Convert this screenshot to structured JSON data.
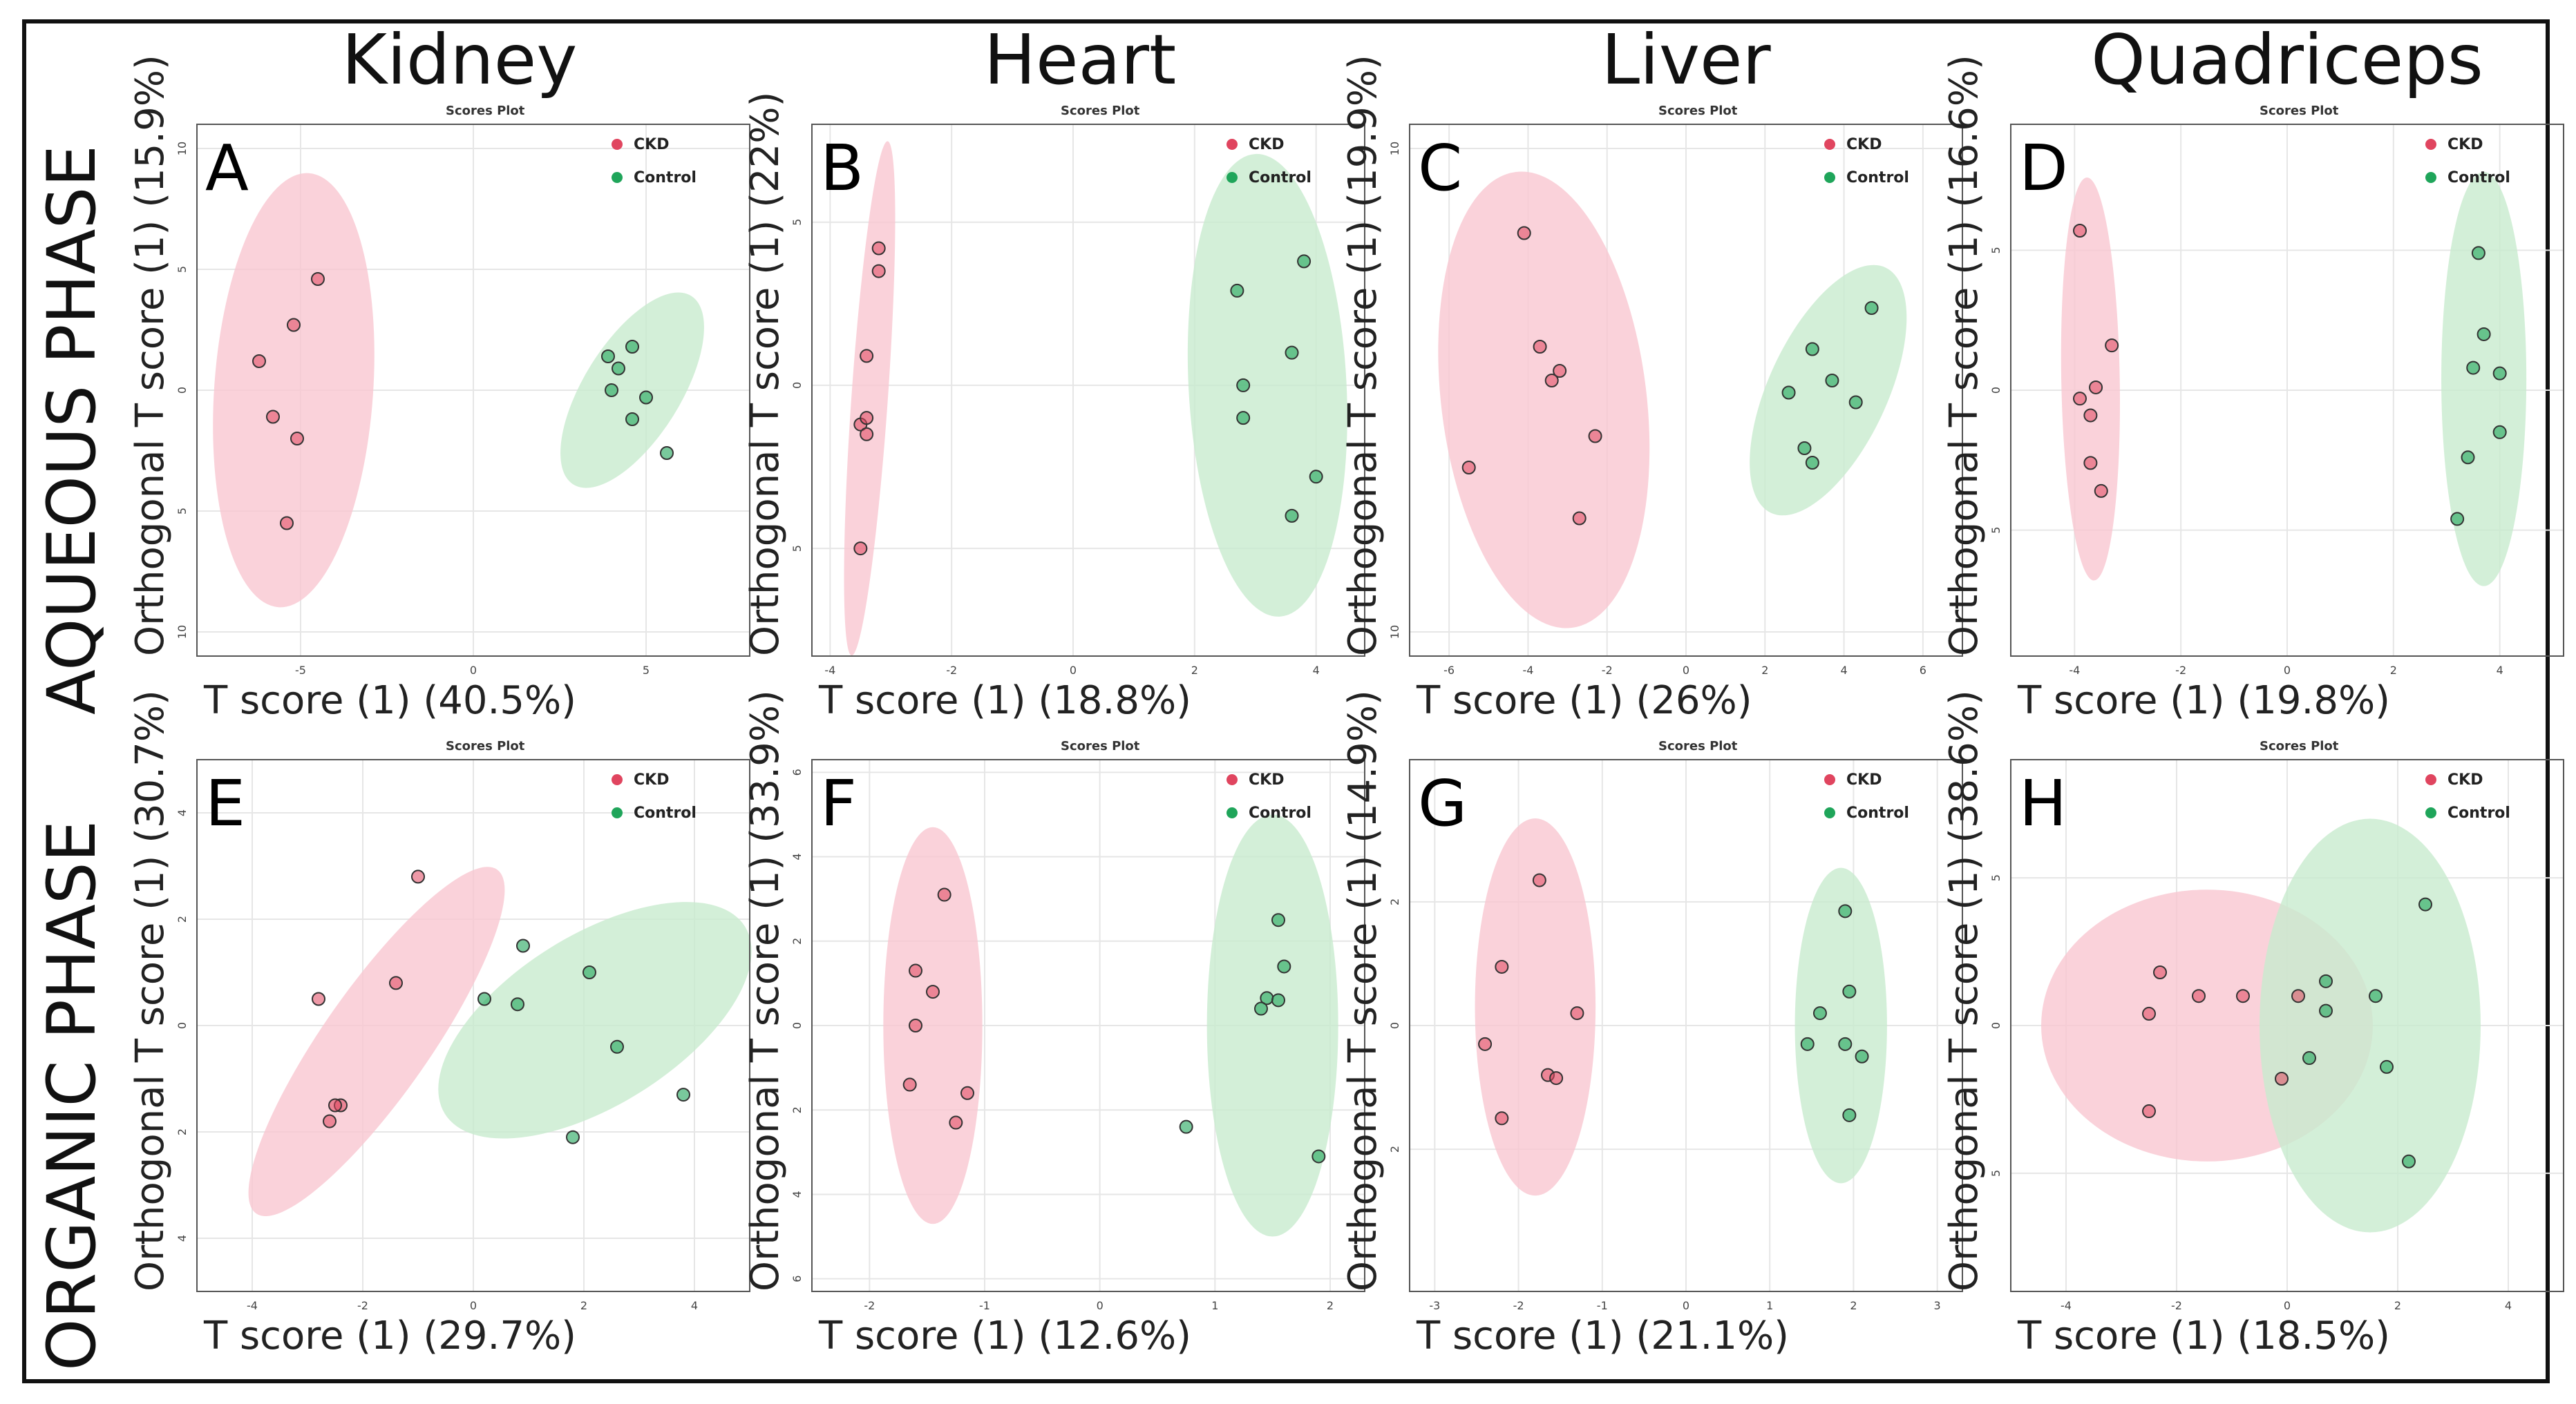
{
  "columns": [
    "Kidney",
    "Heart",
    "Liver",
    "Quadriceps"
  ],
  "rows": [
    "AQUEOUS PHASE",
    "ORGANIC PHASE"
  ],
  "legend": {
    "ckd_label": "CKD",
    "control_label": "Control",
    "ckd_color": "#e0455f",
    "control_color": "#1fa55a",
    "ckd_fill": "#f9c7d1",
    "control_fill": "#c8ebce"
  },
  "panels": [
    {
      "letter": "A",
      "plot_title": "Scores Plot",
      "xlabel": "T score (1) (40.5%)",
      "ylabel": "Orthogonal T score (1) (15.9%)"
    },
    {
      "letter": "B",
      "plot_title": "Scores Plot",
      "xlabel": "T score (1) (18.8%)",
      "ylabel": "Orthogonal T score (1) (22%)"
    },
    {
      "letter": "C",
      "plot_title": "Scores Plot",
      "xlabel": "T score (1) (26%)",
      "ylabel": "Orthogonal T score (1) (19.9%)"
    },
    {
      "letter": "D",
      "plot_title": "Scores Plot",
      "xlabel": "T score (1) (19.8%)",
      "ylabel": "Orthogonal T score (1) (16.6%)"
    },
    {
      "letter": "E",
      "plot_title": "Scores Plot",
      "xlabel": "T score (1) (29.7%)",
      "ylabel": "Orthogonal T score (1)  (30.7%)"
    },
    {
      "letter": "F",
      "plot_title": "Scores Plot",
      "xlabel": "T score (1) (12.6%)",
      "ylabel": "Orthogonal T score (1)  (33.9%)"
    },
    {
      "letter": "G",
      "plot_title": "Scores Plot",
      "xlabel": "T score (1) (21.1%)",
      "ylabel": "Orthogonal T score (1)  (14.9%)"
    },
    {
      "letter": "H",
      "plot_title": "Scores Plot",
      "xlabel": "T score (1) (18.5%)",
      "ylabel": "Orthogonal T score (1)  (38.6%)"
    }
  ],
  "chart_data": [
    {
      "type": "scatter",
      "title": "Scores Plot",
      "panel": "A",
      "organ": "Kidney",
      "phase": "AQUEOUS PHASE",
      "xlabel": "T score (1) (40.5%)",
      "ylabel": "Orthogonal T score (1) (15.9%)",
      "xlim": [
        -8,
        8
      ],
      "ylim": [
        -11,
        11
      ],
      "xticks": [
        -5,
        0,
        5
      ],
      "yticks": [
        -10,
        -5,
        0,
        5,
        10
      ],
      "ytick_labels": [
        "10",
        "5",
        "0",
        "5",
        "10"
      ],
      "series": [
        {
          "name": "CKD",
          "points": [
            [
              -4.5,
              4.6
            ],
            [
              -5.2,
              2.7
            ],
            [
              -6.2,
              1.2
            ],
            [
              -5.8,
              -1.1
            ],
            [
              -5.1,
              -2.0
            ],
            [
              -5.4,
              -5.5
            ]
          ],
          "ellipse": {
            "cx": -5.2,
            "cy": 0,
            "rx": 2.3,
            "ry": 9.0,
            "angle_deg": 4
          }
        },
        {
          "name": "Control",
          "points": [
            [
              3.9,
              1.4
            ],
            [
              4.6,
              1.8
            ],
            [
              4.2,
              0.9
            ],
            [
              4.0,
              0.0
            ],
            [
              5.0,
              -0.3
            ],
            [
              4.6,
              -1.2
            ],
            [
              5.6,
              -2.6
            ]
          ],
          "ellipse": {
            "cx": 4.6,
            "cy": 0,
            "rx": 1.4,
            "ry": 4.6,
            "angle_deg": 32
          }
        }
      ]
    },
    {
      "type": "scatter",
      "title": "Scores Plot",
      "panel": "B",
      "organ": "Heart",
      "phase": "AQUEOUS PHASE",
      "xlabel": "T score (1) (18.8%)",
      "ylabel": "Orthogonal T score (1) (22%)",
      "xlim": [
        -4.3,
        4.8
      ],
      "ylim": [
        -8.3,
        8
      ],
      "xticks": [
        -4,
        -2,
        0,
        2,
        4
      ],
      "yticks": [
        -5,
        0,
        5
      ],
      "ytick_labels": [
        "5",
        "0",
        "5"
      ],
      "series": [
        {
          "name": "CKD",
          "points": [
            [
              -3.2,
              4.2
            ],
            [
              -3.2,
              3.5
            ],
            [
              -3.4,
              0.9
            ],
            [
              -3.5,
              -1.2
            ],
            [
              -3.4,
              -1.0
            ],
            [
              -3.4,
              -1.5
            ],
            [
              -3.5,
              -5.0
            ]
          ],
          "ellipse": {
            "cx": -3.35,
            "cy": -0.4,
            "rx": 0.3,
            "ry": 7.9,
            "angle_deg": 4
          }
        },
        {
          "name": "Control",
          "points": [
            [
              3.8,
              3.8
            ],
            [
              2.7,
              2.9
            ],
            [
              3.6,
              1.0
            ],
            [
              2.8,
              0.0
            ],
            [
              2.8,
              -1.0
            ],
            [
              4.0,
              -2.8
            ],
            [
              3.6,
              -4.0
            ]
          ],
          "ellipse": {
            "cx": 3.2,
            "cy": 0.0,
            "rx": 1.3,
            "ry": 7.1,
            "angle_deg": -3
          }
        }
      ]
    },
    {
      "type": "scatter",
      "title": "Scores Plot",
      "panel": "C",
      "organ": "Liver",
      "phase": "AQUEOUS PHASE",
      "xlabel": "T score (1) (26%)",
      "ylabel": "Orthogonal T score (1) (19.9%)",
      "xlim": [
        -7,
        7
      ],
      "ylim": [
        -11,
        11
      ],
      "xticks": [
        -6,
        -4,
        -2,
        0,
        2,
        4,
        6
      ],
      "yticks": [
        -10,
        10
      ],
      "ytick_labels": [
        "10",
        "10"
      ],
      "series": [
        {
          "name": "CKD",
          "points": [
            [
              -4.1,
              6.5
            ],
            [
              -3.7,
              1.8
            ],
            [
              -3.2,
              0.8
            ],
            [
              -3.4,
              0.4
            ],
            [
              -2.3,
              -1.9
            ],
            [
              -5.5,
              -3.2
            ],
            [
              -2.7,
              -5.3
            ]
          ],
          "ellipse": {
            "cx": -3.6,
            "cy": -0.4,
            "rx": 2.6,
            "ry": 9.5,
            "angle_deg": -7
          }
        },
        {
          "name": "Control",
          "points": [
            [
              4.7,
              3.4
            ],
            [
              3.2,
              1.7
            ],
            [
              3.7,
              0.4
            ],
            [
              2.6,
              -0.1
            ],
            [
              4.3,
              -0.5
            ],
            [
              3.0,
              -2.4
            ],
            [
              3.2,
              -3.0
            ]
          ],
          "ellipse": {
            "cx": 3.6,
            "cy": 0.0,
            "rx": 1.5,
            "ry": 5.6,
            "angle_deg": 25
          }
        }
      ]
    },
    {
      "type": "scatter",
      "title": "Scores Plot",
      "panel": "D",
      "organ": "Quadriceps",
      "phase": "AQUEOUS PHASE",
      "xlabel": "T score (1) (19.8%)",
      "ylabel": "Orthogonal T score (1) (16.6%)",
      "xlim": [
        -5.2,
        5.2
      ],
      "ylim": [
        -9.5,
        9.5
      ],
      "xticks": [
        -4,
        -2,
        0,
        2,
        4
      ],
      "yticks": [
        -5,
        0,
        5
      ],
      "ytick_labels": [
        "5",
        "0",
        "5"
      ],
      "series": [
        {
          "name": "CKD",
          "points": [
            [
              -3.9,
              5.7
            ],
            [
              -3.3,
              1.6
            ],
            [
              -3.6,
              0.1
            ],
            [
              -3.9,
              -0.3
            ],
            [
              -3.7,
              -0.9
            ],
            [
              -3.7,
              -2.6
            ],
            [
              -3.5,
              -3.6
            ]
          ],
          "ellipse": {
            "cx": -3.7,
            "cy": 0.4,
            "rx": 0.55,
            "ry": 7.2,
            "angle_deg": -1
          }
        },
        {
          "name": "Control",
          "points": [
            [
              3.6,
              4.9
            ],
            [
              3.7,
              2.0
            ],
            [
              3.5,
              0.8
            ],
            [
              4.0,
              0.6
            ],
            [
              4.0,
              -1.5
            ],
            [
              3.4,
              -2.4
            ],
            [
              3.2,
              -4.6
            ]
          ],
          "ellipse": {
            "cx": 3.7,
            "cy": 0.4,
            "rx": 0.8,
            "ry": 7.4,
            "angle_deg": 0
          }
        }
      ]
    },
    {
      "type": "scatter",
      "title": "Scores Plot",
      "panel": "E",
      "organ": "Kidney",
      "phase": "ORGANIC PHASE",
      "xlabel": "T score (1) (29.7%)",
      "ylabel": "Orthogonal T score (1)  (30.7%)",
      "xlim": [
        -5,
        5
      ],
      "ylim": [
        -5,
        5
      ],
      "xticks": [
        -4,
        -2,
        0,
        2,
        4
      ],
      "yticks": [
        -4,
        -2,
        0,
        2,
        4
      ],
      "ytick_labels": [
        "4",
        "2",
        "0",
        "2",
        "4"
      ],
      "series": [
        {
          "name": "CKD",
          "points": [
            [
              -1.0,
              2.8
            ],
            [
              -1.4,
              0.8
            ],
            [
              -2.8,
              0.5
            ],
            [
              -2.4,
              -1.5
            ],
            [
              -2.5,
              -1.5
            ],
            [
              -2.6,
              -1.8
            ]
          ],
          "ellipse": {
            "cx": -1.75,
            "cy": -0.3,
            "rx": 3.8,
            "ry": 1.0,
            "angle_deg": -55
          }
        },
        {
          "name": "Control",
          "points": [
            [
              0.9,
              1.5
            ],
            [
              2.1,
              1.0
            ],
            [
              0.2,
              0.5
            ],
            [
              0.8,
              0.4
            ],
            [
              2.6,
              -0.4
            ],
            [
              3.8,
              -1.3
            ],
            [
              1.8,
              -2.1
            ]
          ],
          "ellipse": {
            "cx": 2.2,
            "cy": 0.1,
            "rx": 3.2,
            "ry": 1.6,
            "angle_deg": -32
          }
        }
      ]
    },
    {
      "type": "scatter",
      "title": "Scores Plot",
      "panel": "F",
      "organ": "Heart",
      "phase": "ORGANIC PHASE",
      "xlabel": "T score (1) (12.6%)",
      "ylabel": "Orthogonal T score (1)  (33.9%)",
      "xlim": [
        -2.5,
        2.3
      ],
      "ylim": [
        -6.3,
        6.3
      ],
      "xticks": [
        -2,
        -1,
        0,
        1,
        2
      ],
      "yticks": [
        -6,
        -4,
        -2,
        0,
        2,
        4,
        6
      ],
      "ytick_labels": [
        "6",
        "4",
        "2",
        "0",
        "2",
        "4",
        "6"
      ],
      "series": [
        {
          "name": "CKD",
          "points": [
            [
              -1.35,
              3.1
            ],
            [
              -1.6,
              1.3
            ],
            [
              -1.45,
              0.8
            ],
            [
              -1.6,
              0.0
            ],
            [
              -1.65,
              -1.4
            ],
            [
              -1.15,
              -1.6
            ],
            [
              -1.25,
              -2.3
            ]
          ],
          "ellipse": {
            "cx": -1.45,
            "cy": 0.0,
            "rx": 0.43,
            "ry": 4.7,
            "angle_deg": 0
          }
        },
        {
          "name": "Control",
          "points": [
            [
              1.55,
              2.5
            ],
            [
              1.6,
              1.4
            ],
            [
              1.45,
              0.65
            ],
            [
              1.55,
              0.6
            ],
            [
              1.4,
              0.4
            ],
            [
              0.75,
              -2.4
            ],
            [
              1.9,
              -3.1
            ]
          ],
          "ellipse": {
            "cx": 1.5,
            "cy": 0.0,
            "rx": 0.57,
            "ry": 5.0,
            "angle_deg": 0
          }
        }
      ]
    },
    {
      "type": "scatter",
      "title": "Scores Plot",
      "panel": "G",
      "organ": "Liver",
      "phase": "ORGANIC PHASE",
      "xlabel": "T score (1) (21.1%)",
      "ylabel": "Orthogonal T score (1)  (14.9%)",
      "xlim": [
        -3.3,
        3.3
      ],
      "ylim": [
        -4.3,
        4.3
      ],
      "xticks": [
        -3,
        -2,
        -1,
        0,
        1,
        2,
        3
      ],
      "yticks": [
        -2,
        0,
        2
      ],
      "ytick_labels": [
        "2",
        "0",
        "2"
      ],
      "series": [
        {
          "name": "CKD",
          "points": [
            [
              -1.75,
              2.35
            ],
            [
              -2.2,
              0.95
            ],
            [
              -1.3,
              0.2
            ],
            [
              -2.4,
              -0.3
            ],
            [
              -1.65,
              -0.8
            ],
            [
              -1.55,
              -0.85
            ],
            [
              -2.2,
              -1.5
            ]
          ],
          "ellipse": {
            "cx": -1.8,
            "cy": 0.3,
            "rx": 0.72,
            "ry": 3.05,
            "angle_deg": 0
          }
        },
        {
          "name": "Control",
          "points": [
            [
              1.9,
              1.85
            ],
            [
              1.95,
              0.55
            ],
            [
              1.6,
              0.2
            ],
            [
              1.45,
              -0.3
            ],
            [
              1.9,
              -0.3
            ],
            [
              2.1,
              -0.5
            ],
            [
              1.95,
              -1.45
            ]
          ],
          "ellipse": {
            "cx": 1.85,
            "cy": 0.0,
            "rx": 0.55,
            "ry": 2.55,
            "angle_deg": 0
          }
        }
      ]
    },
    {
      "type": "scatter",
      "title": "Scores Plot",
      "panel": "H",
      "organ": "Quadriceps",
      "phase": "ORGANIC PHASE",
      "xlabel": "T score (1) (18.5%)",
      "ylabel": "Orthogonal T score (1)  (38.6%)",
      "xlim": [
        -5,
        5
      ],
      "ylim": [
        -9,
        9
      ],
      "xticks": [
        -4,
        -2,
        0,
        2,
        4
      ],
      "yticks": [
        -5,
        0,
        5
      ],
      "ytick_labels": [
        "5",
        "0",
        "5"
      ],
      "series": [
        {
          "name": "CKD",
          "points": [
            [
              -2.3,
              1.8
            ],
            [
              -1.6,
              1.0
            ],
            [
              -0.8,
              1.0
            ],
            [
              0.2,
              1.0
            ],
            [
              -2.5,
              0.4
            ],
            [
              -0.1,
              -1.8
            ],
            [
              -2.5,
              -2.9
            ]
          ],
          "ellipse": {
            "cx": -1.45,
            "cy": 0.0,
            "rx": 3.0,
            "ry": 4.6,
            "angle_deg": 0
          }
        },
        {
          "name": "Control",
          "points": [
            [
              2.5,
              4.1
            ],
            [
              0.7,
              1.5
            ],
            [
              1.6,
              1.0
            ],
            [
              0.7,
              0.5
            ],
            [
              0.4,
              -1.1
            ],
            [
              1.8,
              -1.4
            ],
            [
              2.2,
              -4.6
            ]
          ],
          "ellipse": {
            "cx": 1.5,
            "cy": 0.0,
            "rx": 2.0,
            "ry": 7.0,
            "angle_deg": 0
          }
        }
      ]
    }
  ]
}
